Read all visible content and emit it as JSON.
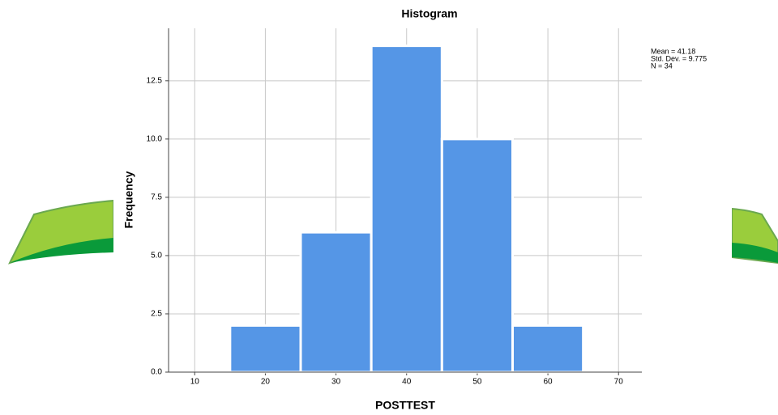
{
  "chart_data": {
    "type": "histogram",
    "title": "Histogram",
    "x_label": "POSTTEST",
    "y_label": "Frequency",
    "bins": [
      15,
      25,
      35,
      45,
      55,
      65
    ],
    "values": [
      2,
      6,
      14,
      10,
      2
    ],
    "color": "#5596e6",
    "xlim": [
      6.3,
      73.3
    ],
    "xticks": [
      10,
      20,
      30,
      40,
      50,
      60,
      70
    ],
    "ylim": [
      0,
      14.75
    ],
    "yticks": [
      {
        "value": 0,
        "label": "0.0"
      },
      {
        "value": 2.5,
        "label": "2.5"
      },
      {
        "value": 5,
        "label": "5.0"
      },
      {
        "value": 7.5,
        "label": "7.5"
      },
      {
        "value": 10,
        "label": "10.0"
      },
      {
        "value": 12.5,
        "label": "12.5"
      }
    ],
    "grid": true,
    "stats": [
      "Mean = 41.18",
      "Std. Dev. = 9.775",
      "N = 34"
    ]
  }
}
